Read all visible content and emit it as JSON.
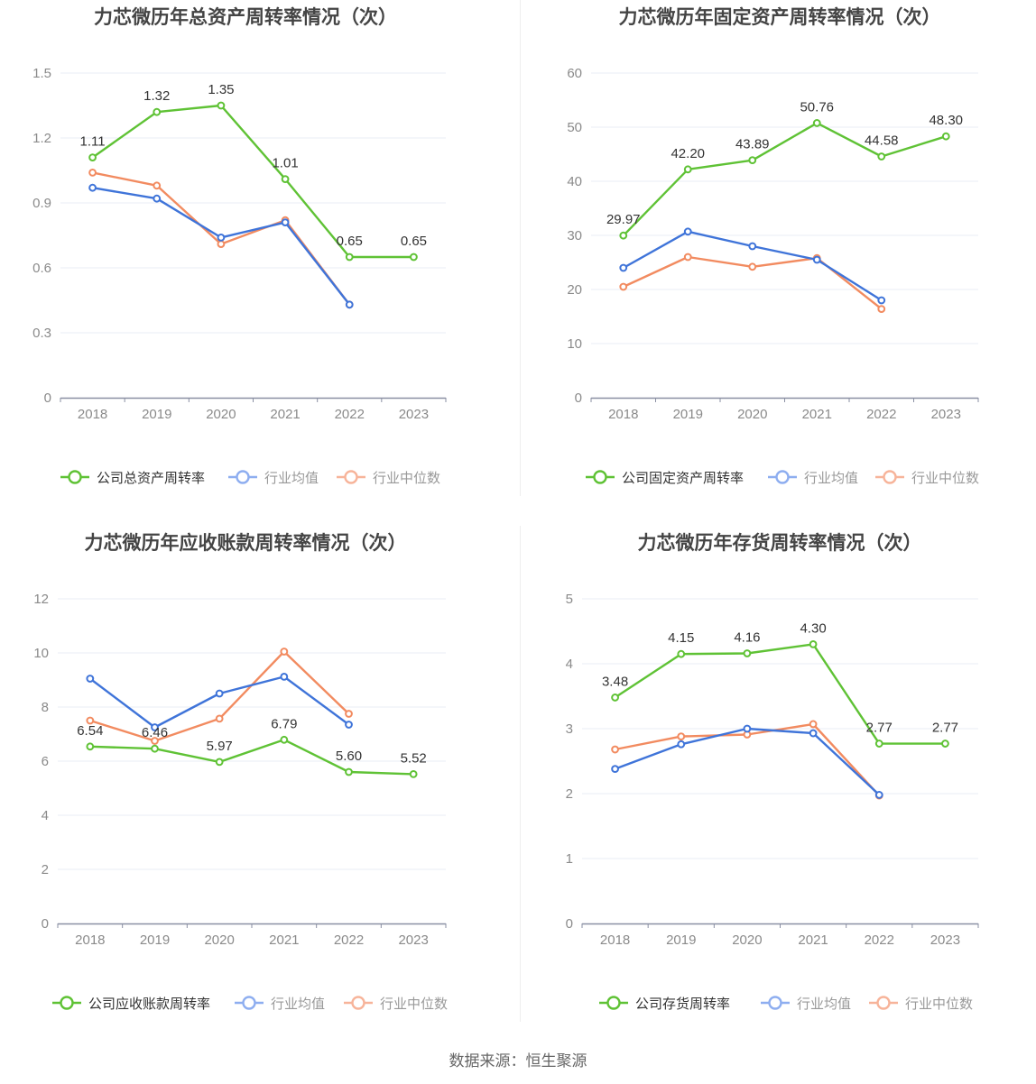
{
  "colors": {
    "company": "#5fc235",
    "avg": "#3f74d9",
    "median": "#f28b60",
    "legend_avg": "#8eaef0",
    "legend_median": "#f7b49a",
    "grid": "#e8ecf4",
    "axis": "#8a8fa3"
  },
  "source": "数据来源：恒生聚源",
  "chart_data": [
    {
      "type": "line",
      "title": "力芯微历年总资产周转率情况（次）",
      "x": [
        "2018",
        "2019",
        "2020",
        "2021",
        "2022",
        "2023"
      ],
      "yticks": [
        "0",
        "0.3",
        "0.6",
        "0.9",
        "1.2",
        "1.5"
      ],
      "ylim": [
        0,
        1.5
      ],
      "grid": true,
      "legend": "bottom",
      "series": [
        {
          "name": "公司总资产周转率",
          "values": [
            1.11,
            1.32,
            1.35,
            1.01,
            0.65,
            0.65
          ],
          "labels": [
            "1.11",
            "1.32",
            "1.35",
            "1.01",
            "0.65",
            "0.65"
          ]
        },
        {
          "name": "行业均值",
          "values": [
            0.97,
            0.92,
            0.74,
            0.81,
            0.43,
            null
          ]
        },
        {
          "name": "行业中位数",
          "values": [
            1.04,
            0.98,
            0.71,
            0.82,
            0.43,
            null
          ]
        }
      ]
    },
    {
      "type": "line",
      "title": "力芯微历年固定资产周转率情况（次）",
      "x": [
        "2018",
        "2019",
        "2020",
        "2021",
        "2022",
        "2023"
      ],
      "yticks": [
        "0",
        "10",
        "20",
        "30",
        "40",
        "50",
        "60"
      ],
      "ylim": [
        0,
        60
      ],
      "grid": true,
      "legend": "bottom",
      "series": [
        {
          "name": "公司固定资产周转率",
          "values": [
            29.97,
            42.2,
            43.89,
            50.76,
            44.58,
            48.3
          ],
          "labels": [
            "29.97",
            "42.20",
            "43.89",
            "50.76",
            "44.58",
            "48.30"
          ]
        },
        {
          "name": "行业均值",
          "values": [
            24.0,
            30.7,
            28.0,
            25.5,
            18.0,
            null
          ]
        },
        {
          "name": "行业中位数",
          "values": [
            20.5,
            26.0,
            24.2,
            25.8,
            16.4,
            null
          ]
        }
      ]
    },
    {
      "type": "line",
      "title": "力芯微历年应收账款周转率情况（次）",
      "x": [
        "2018",
        "2019",
        "2020",
        "2021",
        "2022",
        "2023"
      ],
      "yticks": [
        "0",
        "2",
        "4",
        "6",
        "8",
        "10",
        "12"
      ],
      "ylim": [
        0,
        12
      ],
      "grid": true,
      "legend": "bottom",
      "series": [
        {
          "name": "公司应收账款周转率",
          "values": [
            6.54,
            6.46,
            5.97,
            6.79,
            5.6,
            5.52
          ],
          "labels": [
            "6.54",
            "6.46",
            "5.97",
            "6.79",
            "5.60",
            "5.52"
          ]
        },
        {
          "name": "行业均值",
          "values": [
            9.05,
            7.25,
            8.5,
            9.12,
            7.35,
            null
          ]
        },
        {
          "name": "行业中位数",
          "values": [
            7.5,
            6.75,
            7.57,
            10.05,
            7.75,
            null
          ]
        }
      ]
    },
    {
      "type": "line",
      "title": "力芯微历年存货周转率情况（次）",
      "x": [
        "2018",
        "2019",
        "2020",
        "2021",
        "2022",
        "2023"
      ],
      "yticks": [
        "0",
        "1",
        "2",
        "3",
        "4",
        "5"
      ],
      "ylim": [
        0,
        5
      ],
      "grid": true,
      "legend": "bottom",
      "series": [
        {
          "name": "公司存货周转率",
          "values": [
            3.48,
            4.15,
            4.16,
            4.3,
            2.77,
            2.77
          ],
          "labels": [
            "3.48",
            "4.15",
            "4.16",
            "4.30",
            "2.77",
            "2.77"
          ]
        },
        {
          "name": "行业均值",
          "values": [
            2.38,
            2.76,
            3.0,
            2.93,
            1.98,
            null
          ]
        },
        {
          "name": "行业中位数",
          "values": [
            2.68,
            2.88,
            2.91,
            3.07,
            1.97,
            null
          ]
        }
      ]
    }
  ]
}
